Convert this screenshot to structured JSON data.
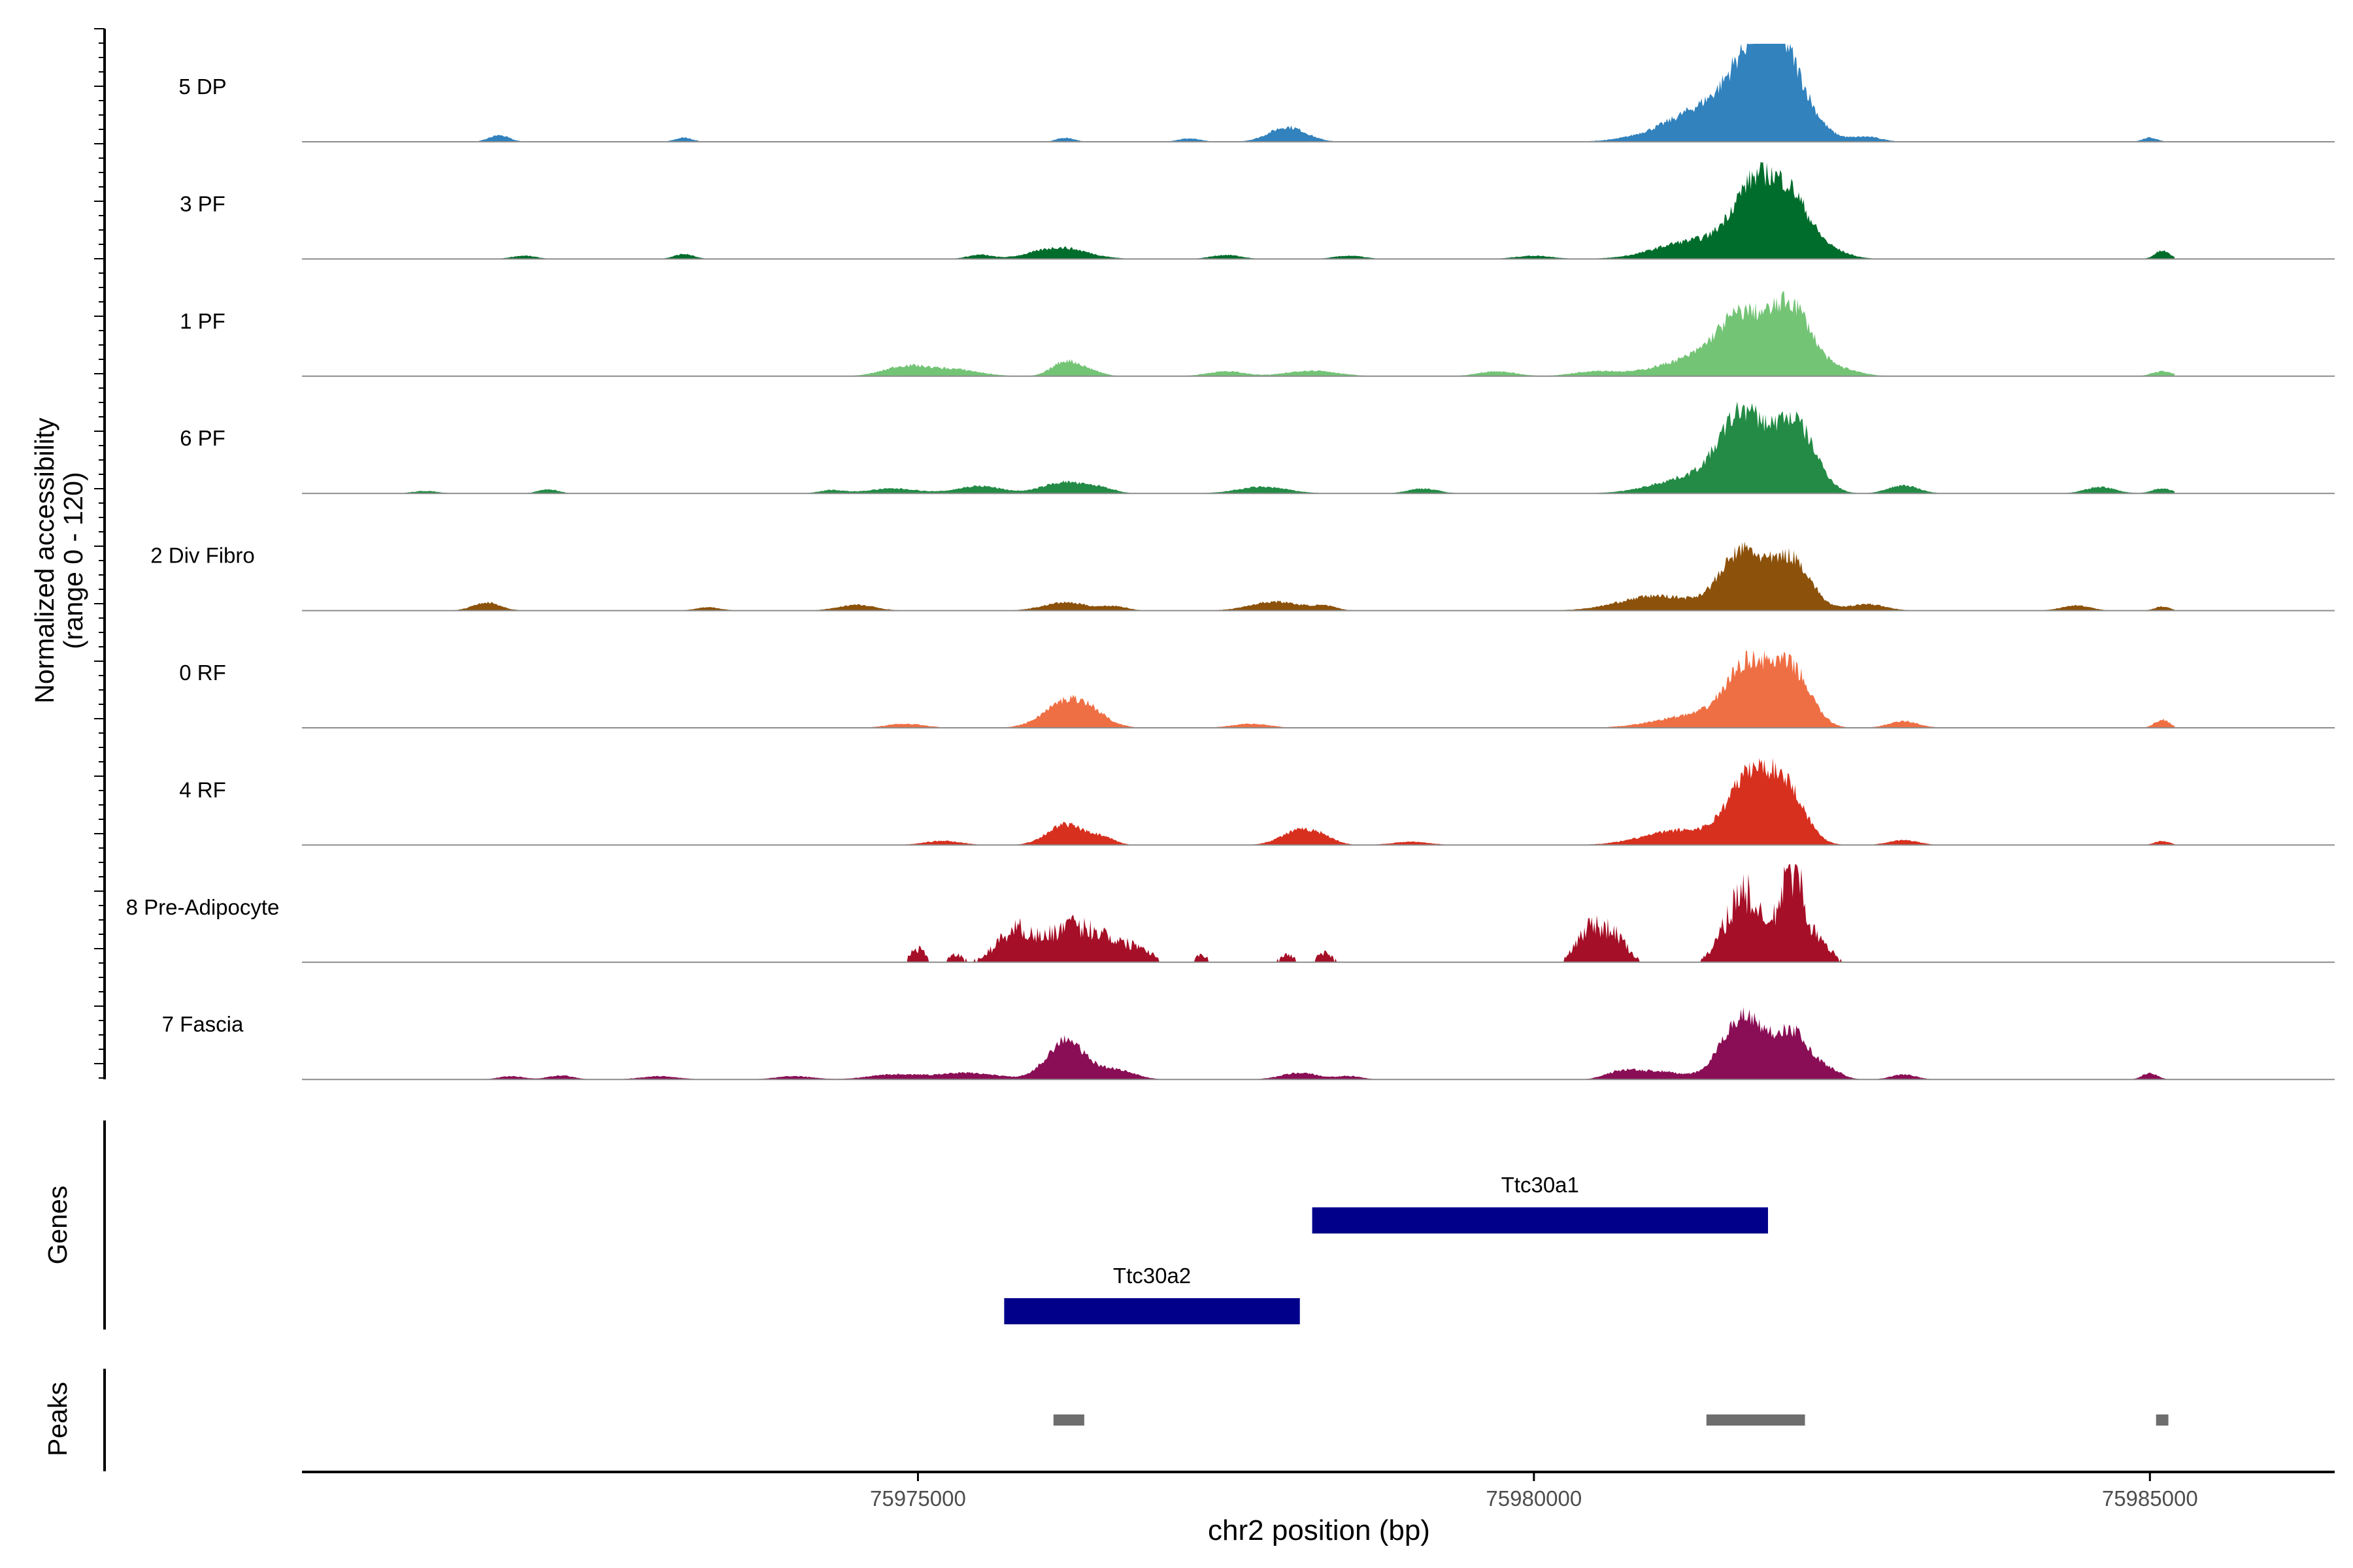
{
  "chart_data": {
    "type": "area",
    "title": "",
    "ylabel_line1": "Normalized accessibility",
    "ylabel_line2": "(range 0 - 120)",
    "xlabel": "chr2 position (bp)",
    "xlim": [
      75970000,
      75986500
    ],
    "ylim": [
      0,
      120
    ],
    "x_ticks": [
      75975000,
      75980000,
      75985000
    ],
    "x_tick_labels": [
      "75975000",
      "75980000",
      "75985000"
    ],
    "section_labels": {
      "genes": "Genes",
      "peaks": "Peaks"
    },
    "tracks": [
      {
        "name": "5 DP",
        "color": "#3182bd",
        "peaks": [
          [
            75971600,
            8,
            80
          ],
          [
            75973100,
            5,
            70
          ],
          [
            75976200,
            5,
            70
          ],
          [
            75977200,
            4,
            90
          ],
          [
            75978000,
            18,
            150
          ],
          [
            75981200,
            18,
            300
          ],
          [
            75981500,
            32,
            250
          ],
          [
            75981800,
            95,
            180
          ],
          [
            75982050,
            78,
            160
          ],
          [
            75982300,
            10,
            150
          ],
          [
            75982700,
            6,
            120
          ],
          [
            75985000,
            5,
            60
          ]
        ]
      },
      {
        "name": "3 PF",
        "color": "#006d2c",
        "peaks": [
          [
            75971800,
            4,
            100
          ],
          [
            75973100,
            6,
            80
          ],
          [
            75975500,
            5,
            100
          ],
          [
            75976150,
            14,
            220
          ],
          [
            75977500,
            5,
            120
          ],
          [
            75978500,
            4,
            120
          ],
          [
            75980000,
            4,
            150
          ],
          [
            75981300,
            22,
            300
          ],
          [
            75981800,
            88,
            180
          ],
          [
            75982100,
            62,
            150
          ],
          [
            75982400,
            10,
            150
          ],
          [
            75985100,
            10,
            60
          ]
        ]
      },
      {
        "name": "1 PF",
        "color": "#74c476",
        "peaks": [
          [
            75974900,
            12,
            180
          ],
          [
            75975300,
            8,
            200
          ],
          [
            75976200,
            18,
            110
          ],
          [
            75976400,
            6,
            100
          ],
          [
            75977500,
            6,
            150
          ],
          [
            75978200,
            7,
            200
          ],
          [
            75979700,
            6,
            150
          ],
          [
            75980500,
            6,
            180
          ],
          [
            75981300,
            20,
            300
          ],
          [
            75981700,
            68,
            200
          ],
          [
            75982100,
            80,
            160
          ],
          [
            75982500,
            8,
            150
          ],
          [
            75985100,
            6,
            80
          ]
        ]
      },
      {
        "name": "6 PF",
        "color": "#238b45",
        "peaks": [
          [
            75971000,
            3,
            100
          ],
          [
            75972000,
            5,
            80
          ],
          [
            75974300,
            4,
            100
          ],
          [
            75974800,
            6,
            200
          ],
          [
            75975500,
            9,
            180
          ],
          [
            75976200,
            14,
            180
          ],
          [
            75976500,
            5,
            100
          ],
          [
            75977800,
            8,
            200
          ],
          [
            75979100,
            6,
            120
          ],
          [
            75981300,
            20,
            300
          ],
          [
            75981700,
            92,
            180
          ],
          [
            75982100,
            82,
            150
          ],
          [
            75982300,
            12,
            120
          ],
          [
            75983000,
            10,
            120
          ],
          [
            75984600,
            8,
            120
          ],
          [
            75985100,
            6,
            80
          ]
        ]
      },
      {
        "name": "2 Div Fibro",
        "color": "#8c510a",
        "peaks": [
          [
            75971500,
            10,
            110
          ],
          [
            75973300,
            4,
            100
          ],
          [
            75974500,
            7,
            150
          ],
          [
            75976200,
            10,
            180
          ],
          [
            75976600,
            5,
            100
          ],
          [
            75977900,
            11,
            200
          ],
          [
            75978300,
            5,
            100
          ],
          [
            75981000,
            18,
            300
          ],
          [
            75981700,
            72,
            180
          ],
          [
            75982100,
            60,
            150
          ],
          [
            75982700,
            8,
            150
          ],
          [
            75984400,
            6,
            120
          ],
          [
            75985100,
            5,
            60
          ]
        ]
      },
      {
        "name": "0 RF",
        "color": "#ef6f44",
        "peaks": [
          [
            75974900,
            5,
            150
          ],
          [
            75976200,
            30,
            180
          ],
          [
            75976400,
            12,
            150
          ],
          [
            75977700,
            5,
            150
          ],
          [
            75981300,
            15,
            300
          ],
          [
            75981750,
            75,
            180
          ],
          [
            75982100,
            65,
            150
          ],
          [
            75983000,
            8,
            120
          ],
          [
            75985100,
            10,
            60
          ]
        ]
      },
      {
        "name": "4 RF",
        "color": "#d7301f",
        "peaks": [
          [
            75975200,
            5,
            150
          ],
          [
            75976200,
            25,
            150
          ],
          [
            75976500,
            8,
            100
          ],
          [
            75978100,
            18,
            150
          ],
          [
            75978300,
            6,
            100
          ],
          [
            75979000,
            4,
            150
          ],
          [
            75981200,
            18,
            300
          ],
          [
            75981750,
            80,
            170
          ],
          [
            75982050,
            65,
            150
          ],
          [
            75983000,
            6,
            120
          ],
          [
            75985100,
            5,
            60
          ]
        ]
      },
      {
        "name": "8 Pre-Adipocyte",
        "color": "#a50f27",
        "peaks": [
          [
            75975000,
            18,
            60
          ],
          [
            75975300,
            10,
            60
          ],
          [
            75975800,
            45,
            150
          ],
          [
            75976200,
            42,
            150
          ],
          [
            75976500,
            35,
            150
          ],
          [
            75976800,
            18,
            100
          ],
          [
            75977300,
            10,
            50
          ],
          [
            75978000,
            10,
            60
          ],
          [
            75978300,
            12,
            60
          ],
          [
            75980450,
            45,
            100
          ],
          [
            75980650,
            35,
            100
          ],
          [
            75981700,
            95,
            140
          ],
          [
            75982100,
            130,
            100
          ],
          [
            75982350,
            20,
            80
          ]
        ]
      },
      {
        "name": "7 Fascia",
        "color": "#8a0e55",
        "peaks": [
          [
            75971700,
            4,
            100
          ],
          [
            75972100,
            5,
            100
          ],
          [
            75972900,
            4,
            150
          ],
          [
            75974000,
            4,
            150
          ],
          [
            75974800,
            6,
            200
          ],
          [
            75975400,
            8,
            250
          ],
          [
            75976200,
            48,
            150
          ],
          [
            75976600,
            12,
            150
          ],
          [
            75978100,
            8,
            150
          ],
          [
            75978500,
            4,
            100
          ],
          [
            75980700,
            8,
            120
          ],
          [
            75981000,
            10,
            200
          ],
          [
            75981700,
            78,
            170
          ],
          [
            75982100,
            56,
            140
          ],
          [
            75982400,
            10,
            100
          ],
          [
            75983000,
            6,
            100
          ],
          [
            75985000,
            8,
            60
          ]
        ]
      }
    ],
    "genes": [
      {
        "name": "Ttc30a1",
        "start": 75978200,
        "end": 75981900
      },
      {
        "name": "Ttc30a2",
        "start": 75975700,
        "end": 75978100
      }
    ],
    "peak_regions": [
      {
        "start": 75976100,
        "end": 75976350
      },
      {
        "start": 75981400,
        "end": 75982200
      },
      {
        "start": 75985050,
        "end": 75985150
      }
    ]
  }
}
